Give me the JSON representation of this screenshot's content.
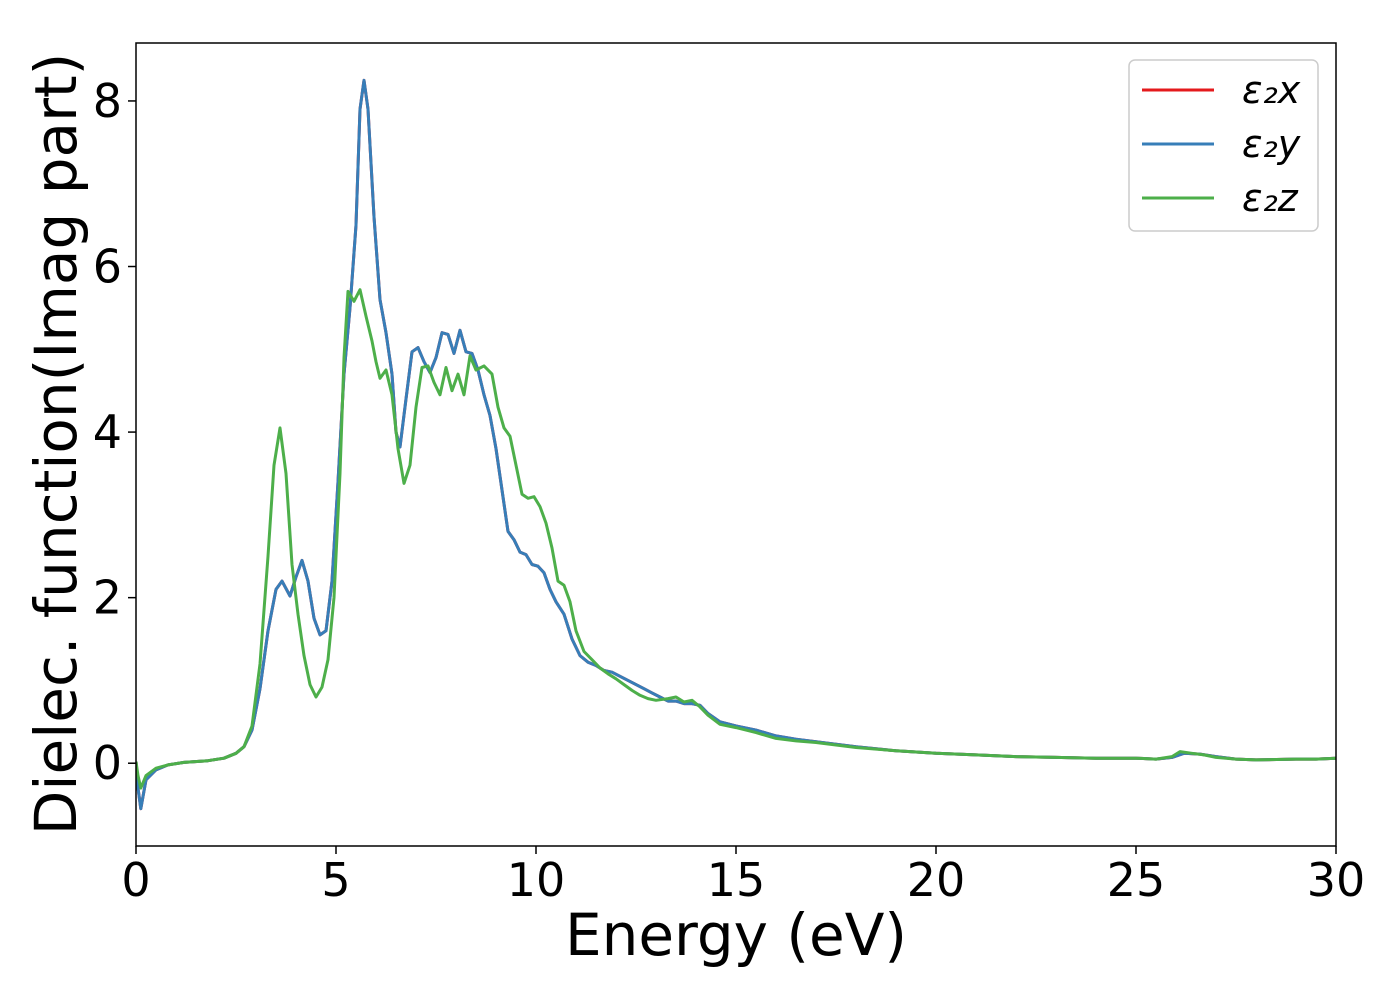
{
  "chart_data": {
    "type": "line",
    "title": "",
    "xlabel": "Energy (eV)",
    "ylabel": "Dielec. function(Imag part)",
    "xlim": [
      0,
      30
    ],
    "ylim": [
      -1.0,
      8.7
    ],
    "xticks": [
      0,
      5,
      10,
      15,
      20,
      25,
      30
    ],
    "yticks": [
      0,
      2,
      4,
      6,
      8
    ],
    "grid": false,
    "legend_position": "top-right",
    "series": [
      {
        "name": "ε₂x",
        "color": "#e41a1c",
        "points": [
          [
            0.0,
            0.02
          ],
          [
            0.05,
            -0.3
          ],
          [
            0.12,
            -0.55
          ],
          [
            0.25,
            -0.2
          ],
          [
            0.5,
            -0.08
          ],
          [
            0.8,
            -0.02
          ],
          [
            1.2,
            0.01
          ],
          [
            1.8,
            0.03
          ],
          [
            2.2,
            0.06
          ],
          [
            2.5,
            0.12
          ],
          [
            2.7,
            0.2
          ],
          [
            2.9,
            0.4
          ],
          [
            3.1,
            0.9
          ],
          [
            3.3,
            1.6
          ],
          [
            3.5,
            2.1
          ],
          [
            3.65,
            2.2
          ],
          [
            3.85,
            2.02
          ],
          [
            4.0,
            2.25
          ],
          [
            4.15,
            2.45
          ],
          [
            4.3,
            2.2
          ],
          [
            4.45,
            1.75
          ],
          [
            4.6,
            1.55
          ],
          [
            4.75,
            1.6
          ],
          [
            4.9,
            2.2
          ],
          [
            5.05,
            3.4
          ],
          [
            5.2,
            4.7
          ],
          [
            5.35,
            5.5
          ],
          [
            5.5,
            6.5
          ],
          [
            5.6,
            7.9
          ],
          [
            5.7,
            8.25
          ],
          [
            5.8,
            7.9
          ],
          [
            5.95,
            6.6
          ],
          [
            6.1,
            5.6
          ],
          [
            6.25,
            5.2
          ],
          [
            6.4,
            4.7
          ],
          [
            6.5,
            4.0
          ],
          [
            6.6,
            3.82
          ],
          [
            6.75,
            4.4
          ],
          [
            6.9,
            4.97
          ],
          [
            7.05,
            5.02
          ],
          [
            7.2,
            4.85
          ],
          [
            7.35,
            4.72
          ],
          [
            7.5,
            4.9
          ],
          [
            7.65,
            5.2
          ],
          [
            7.8,
            5.18
          ],
          [
            7.95,
            4.95
          ],
          [
            8.1,
            5.23
          ],
          [
            8.25,
            4.97
          ],
          [
            8.4,
            4.95
          ],
          [
            8.55,
            4.75
          ],
          [
            8.7,
            4.45
          ],
          [
            8.85,
            4.2
          ],
          [
            9.0,
            3.8
          ],
          [
            9.15,
            3.3
          ],
          [
            9.3,
            2.8
          ],
          [
            9.45,
            2.7
          ],
          [
            9.6,
            2.55
          ],
          [
            9.75,
            2.52
          ],
          [
            9.9,
            2.4
          ],
          [
            10.05,
            2.38
          ],
          [
            10.2,
            2.3
          ],
          [
            10.35,
            2.1
          ],
          [
            10.5,
            1.95
          ],
          [
            10.7,
            1.8
          ],
          [
            10.9,
            1.5
          ],
          [
            11.1,
            1.3
          ],
          [
            11.3,
            1.22
          ],
          [
            11.5,
            1.18
          ],
          [
            11.7,
            1.12
          ],
          [
            11.9,
            1.1
          ],
          [
            12.1,
            1.05
          ],
          [
            12.3,
            1.0
          ],
          [
            12.5,
            0.95
          ],
          [
            12.7,
            0.9
          ],
          [
            12.9,
            0.85
          ],
          [
            13.1,
            0.8
          ],
          [
            13.3,
            0.75
          ],
          [
            13.5,
            0.75
          ],
          [
            13.7,
            0.72
          ],
          [
            13.9,
            0.72
          ],
          [
            14.1,
            0.7
          ],
          [
            14.3,
            0.6
          ],
          [
            14.6,
            0.5
          ],
          [
            15.0,
            0.45
          ],
          [
            15.5,
            0.4
          ],
          [
            16.0,
            0.33
          ],
          [
            16.5,
            0.29
          ],
          [
            17.0,
            0.26
          ],
          [
            17.5,
            0.23
          ],
          [
            18.0,
            0.2
          ],
          [
            19.0,
            0.15
          ],
          [
            20.0,
            0.12
          ],
          [
            21.0,
            0.1
          ],
          [
            22.0,
            0.08
          ],
          [
            23.0,
            0.07
          ],
          [
            24.0,
            0.06
          ],
          [
            25.0,
            0.06
          ],
          [
            25.5,
            0.05
          ],
          [
            25.9,
            0.07
          ],
          [
            26.2,
            0.12
          ],
          [
            26.6,
            0.11
          ],
          [
            27.0,
            0.08
          ],
          [
            27.5,
            0.05
          ],
          [
            28.0,
            0.04
          ],
          [
            29.0,
            0.05
          ],
          [
            29.5,
            0.05
          ],
          [
            30.0,
            0.06
          ]
        ]
      },
      {
        "name": "ε₂y",
        "color": "#377eb8",
        "points": [
          [
            0.0,
            0.02
          ],
          [
            0.05,
            -0.3
          ],
          [
            0.12,
            -0.55
          ],
          [
            0.25,
            -0.2
          ],
          [
            0.5,
            -0.08
          ],
          [
            0.8,
            -0.02
          ],
          [
            1.2,
            0.01
          ],
          [
            1.8,
            0.03
          ],
          [
            2.2,
            0.06
          ],
          [
            2.5,
            0.12
          ],
          [
            2.7,
            0.2
          ],
          [
            2.9,
            0.4
          ],
          [
            3.1,
            0.9
          ],
          [
            3.3,
            1.6
          ],
          [
            3.5,
            2.1
          ],
          [
            3.65,
            2.2
          ],
          [
            3.85,
            2.02
          ],
          [
            4.0,
            2.25
          ],
          [
            4.15,
            2.45
          ],
          [
            4.3,
            2.2
          ],
          [
            4.45,
            1.75
          ],
          [
            4.6,
            1.55
          ],
          [
            4.75,
            1.6
          ],
          [
            4.9,
            2.2
          ],
          [
            5.05,
            3.4
          ],
          [
            5.2,
            4.7
          ],
          [
            5.35,
            5.5
          ],
          [
            5.5,
            6.5
          ],
          [
            5.6,
            7.9
          ],
          [
            5.7,
            8.25
          ],
          [
            5.8,
            7.9
          ],
          [
            5.95,
            6.6
          ],
          [
            6.1,
            5.6
          ],
          [
            6.25,
            5.2
          ],
          [
            6.4,
            4.7
          ],
          [
            6.5,
            4.0
          ],
          [
            6.6,
            3.82
          ],
          [
            6.75,
            4.4
          ],
          [
            6.9,
            4.97
          ],
          [
            7.05,
            5.02
          ],
          [
            7.2,
            4.85
          ],
          [
            7.35,
            4.72
          ],
          [
            7.5,
            4.9
          ],
          [
            7.65,
            5.2
          ],
          [
            7.8,
            5.18
          ],
          [
            7.95,
            4.95
          ],
          [
            8.1,
            5.23
          ],
          [
            8.25,
            4.97
          ],
          [
            8.4,
            4.95
          ],
          [
            8.55,
            4.75
          ],
          [
            8.7,
            4.45
          ],
          [
            8.85,
            4.2
          ],
          [
            9.0,
            3.8
          ],
          [
            9.15,
            3.3
          ],
          [
            9.3,
            2.8
          ],
          [
            9.45,
            2.7
          ],
          [
            9.6,
            2.55
          ],
          [
            9.75,
            2.52
          ],
          [
            9.9,
            2.4
          ],
          [
            10.05,
            2.38
          ],
          [
            10.2,
            2.3
          ],
          [
            10.35,
            2.1
          ],
          [
            10.5,
            1.95
          ],
          [
            10.7,
            1.8
          ],
          [
            10.9,
            1.5
          ],
          [
            11.1,
            1.3
          ],
          [
            11.3,
            1.22
          ],
          [
            11.5,
            1.18
          ],
          [
            11.7,
            1.12
          ],
          [
            11.9,
            1.1
          ],
          [
            12.1,
            1.05
          ],
          [
            12.3,
            1.0
          ],
          [
            12.5,
            0.95
          ],
          [
            12.7,
            0.9
          ],
          [
            12.9,
            0.85
          ],
          [
            13.1,
            0.8
          ],
          [
            13.3,
            0.75
          ],
          [
            13.5,
            0.75
          ],
          [
            13.7,
            0.72
          ],
          [
            13.9,
            0.72
          ],
          [
            14.1,
            0.7
          ],
          [
            14.3,
            0.6
          ],
          [
            14.6,
            0.5
          ],
          [
            15.0,
            0.45
          ],
          [
            15.5,
            0.4
          ],
          [
            16.0,
            0.33
          ],
          [
            16.5,
            0.29
          ],
          [
            17.0,
            0.26
          ],
          [
            17.5,
            0.23
          ],
          [
            18.0,
            0.2
          ],
          [
            19.0,
            0.15
          ],
          [
            20.0,
            0.12
          ],
          [
            21.0,
            0.1
          ],
          [
            22.0,
            0.08
          ],
          [
            23.0,
            0.07
          ],
          [
            24.0,
            0.06
          ],
          [
            25.0,
            0.06
          ],
          [
            25.5,
            0.05
          ],
          [
            25.9,
            0.07
          ],
          [
            26.2,
            0.12
          ],
          [
            26.6,
            0.11
          ],
          [
            27.0,
            0.08
          ],
          [
            27.5,
            0.05
          ],
          [
            28.0,
            0.04
          ],
          [
            29.0,
            0.05
          ],
          [
            29.5,
            0.05
          ],
          [
            30.0,
            0.06
          ]
        ]
      },
      {
        "name": "ε₂z",
        "color": "#4daf4a",
        "points": [
          [
            0.0,
            0.02
          ],
          [
            0.05,
            -0.15
          ],
          [
            0.12,
            -0.3
          ],
          [
            0.25,
            -0.15
          ],
          [
            0.5,
            -0.06
          ],
          [
            0.8,
            -0.02
          ],
          [
            1.2,
            0.01
          ],
          [
            1.8,
            0.03
          ],
          [
            2.2,
            0.06
          ],
          [
            2.5,
            0.12
          ],
          [
            2.7,
            0.2
          ],
          [
            2.9,
            0.45
          ],
          [
            3.1,
            1.2
          ],
          [
            3.3,
            2.5
          ],
          [
            3.45,
            3.6
          ],
          [
            3.6,
            4.05
          ],
          [
            3.75,
            3.5
          ],
          [
            3.9,
            2.4
          ],
          [
            4.05,
            1.8
          ],
          [
            4.2,
            1.3
          ],
          [
            4.35,
            0.95
          ],
          [
            4.5,
            0.8
          ],
          [
            4.65,
            0.92
          ],
          [
            4.8,
            1.25
          ],
          [
            4.95,
            2.0
          ],
          [
            5.1,
            3.5
          ],
          [
            5.2,
            4.9
          ],
          [
            5.3,
            5.7
          ],
          [
            5.45,
            5.58
          ],
          [
            5.6,
            5.72
          ],
          [
            5.75,
            5.4
          ],
          [
            5.9,
            5.1
          ],
          [
            6.0,
            4.85
          ],
          [
            6.1,
            4.65
          ],
          [
            6.25,
            4.75
          ],
          [
            6.4,
            4.45
          ],
          [
            6.55,
            3.8
          ],
          [
            6.7,
            3.38
          ],
          [
            6.85,
            3.6
          ],
          [
            7.0,
            4.3
          ],
          [
            7.15,
            4.78
          ],
          [
            7.3,
            4.8
          ],
          [
            7.45,
            4.6
          ],
          [
            7.6,
            4.45
          ],
          [
            7.75,
            4.78
          ],
          [
            7.9,
            4.5
          ],
          [
            8.05,
            4.7
          ],
          [
            8.2,
            4.45
          ],
          [
            8.35,
            4.92
          ],
          [
            8.5,
            4.75
          ],
          [
            8.7,
            4.8
          ],
          [
            8.9,
            4.7
          ],
          [
            9.05,
            4.3
          ],
          [
            9.2,
            4.05
          ],
          [
            9.35,
            3.95
          ],
          [
            9.5,
            3.6
          ],
          [
            9.65,
            3.25
          ],
          [
            9.8,
            3.2
          ],
          [
            9.95,
            3.22
          ],
          [
            10.1,
            3.1
          ],
          [
            10.25,
            2.9
          ],
          [
            10.4,
            2.6
          ],
          [
            10.55,
            2.2
          ],
          [
            10.7,
            2.15
          ],
          [
            10.85,
            1.95
          ],
          [
            11.0,
            1.6
          ],
          [
            11.2,
            1.35
          ],
          [
            11.4,
            1.25
          ],
          [
            11.6,
            1.15
          ],
          [
            11.8,
            1.08
          ],
          [
            12.0,
            1.02
          ],
          [
            12.2,
            0.95
          ],
          [
            12.4,
            0.88
          ],
          [
            12.6,
            0.82
          ],
          [
            12.8,
            0.78
          ],
          [
            13.0,
            0.76
          ],
          [
            13.3,
            0.78
          ],
          [
            13.5,
            0.8
          ],
          [
            13.7,
            0.74
          ],
          [
            13.9,
            0.76
          ],
          [
            14.1,
            0.68
          ],
          [
            14.3,
            0.58
          ],
          [
            14.6,
            0.47
          ],
          [
            15.0,
            0.43
          ],
          [
            15.5,
            0.37
          ],
          [
            16.0,
            0.3
          ],
          [
            16.5,
            0.27
          ],
          [
            17.0,
            0.25
          ],
          [
            17.5,
            0.22
          ],
          [
            18.0,
            0.19
          ],
          [
            19.0,
            0.15
          ],
          [
            20.0,
            0.12
          ],
          [
            21.0,
            0.1
          ],
          [
            22.0,
            0.08
          ],
          [
            23.0,
            0.07
          ],
          [
            24.0,
            0.06
          ],
          [
            25.0,
            0.06
          ],
          [
            25.5,
            0.05
          ],
          [
            25.9,
            0.08
          ],
          [
            26.1,
            0.14
          ],
          [
            26.4,
            0.12
          ],
          [
            26.7,
            0.1
          ],
          [
            27.0,
            0.07
          ],
          [
            27.5,
            0.05
          ],
          [
            28.0,
            0.04
          ],
          [
            29.0,
            0.05
          ],
          [
            29.5,
            0.05
          ],
          [
            30.0,
            0.06
          ]
        ]
      }
    ]
  }
}
